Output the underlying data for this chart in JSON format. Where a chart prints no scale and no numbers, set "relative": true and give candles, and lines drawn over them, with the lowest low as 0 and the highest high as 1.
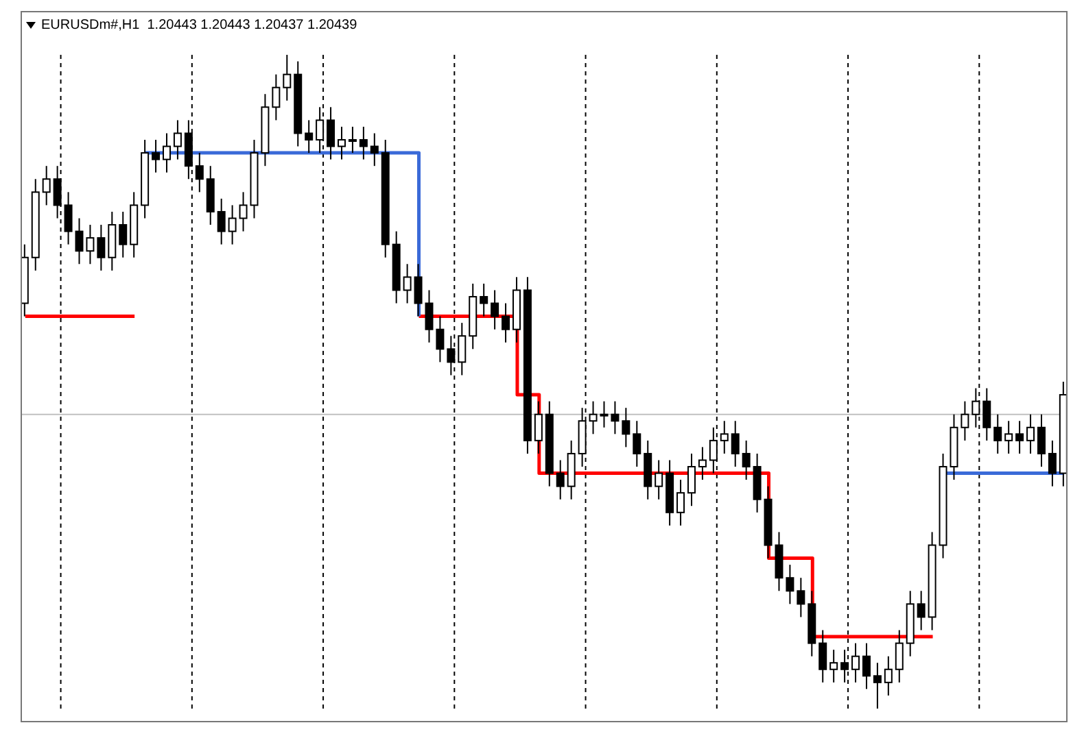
{
  "chart_data": {
    "type": "candlestick",
    "title": "EURUSDm#,H1  1.20443 1.20443 1.20437 1.20439",
    "relative": true,
    "color": "#000000",
    "categories": [
      null,
      null,
      null,
      null,
      null,
      null,
      null,
      null,
      null,
      null,
      null,
      null,
      null,
      null,
      null,
      null,
      null,
      null,
      null,
      null,
      null,
      null,
      null,
      null,
      null,
      null,
      null,
      null,
      null,
      null,
      null,
      null,
      null,
      null,
      null,
      null,
      null,
      null,
      null,
      null,
      null,
      null,
      null,
      null,
      null,
      null,
      null,
      null,
      null,
      null,
      null,
      null,
      null,
      null,
      null,
      null,
      null,
      null,
      null,
      null,
      null,
      null,
      null,
      null,
      null,
      null,
      null,
      null,
      null,
      null,
      null,
      null,
      null,
      null,
      null,
      null,
      null,
      null,
      null,
      null,
      null,
      null,
      null,
      null,
      null,
      null,
      null,
      null,
      null,
      null,
      null,
      null,
      null,
      null,
      null,
      null
    ],
    "ohlc": [
      [
        0.62,
        0.71,
        0.6,
        0.69
      ],
      [
        0.69,
        0.81,
        0.67,
        0.79
      ],
      [
        0.79,
        0.83,
        0.77,
        0.81
      ],
      [
        0.81,
        0.83,
        0.75,
        0.77
      ],
      [
        0.77,
        0.79,
        0.71,
        0.73
      ],
      [
        0.73,
        0.75,
        0.68,
        0.7
      ],
      [
        0.7,
        0.74,
        0.68,
        0.72
      ],
      [
        0.72,
        0.74,
        0.67,
        0.69
      ],
      [
        0.69,
        0.76,
        0.67,
        0.74
      ],
      [
        0.74,
        0.76,
        0.69,
        0.71
      ],
      [
        0.71,
        0.79,
        0.69,
        0.77
      ],
      [
        0.77,
        0.87,
        0.75,
        0.85
      ],
      [
        0.85,
        0.87,
        0.82,
        0.84
      ],
      [
        0.84,
        0.88,
        0.82,
        0.86
      ],
      [
        0.86,
        0.9,
        0.84,
        0.88
      ],
      [
        0.88,
        0.9,
        0.81,
        0.83
      ],
      [
        0.83,
        0.85,
        0.79,
        0.81
      ],
      [
        0.81,
        0.83,
        0.74,
        0.76
      ],
      [
        0.76,
        0.78,
        0.71,
        0.73
      ],
      [
        0.73,
        0.77,
        0.71,
        0.75
      ],
      [
        0.75,
        0.79,
        0.73,
        0.77
      ],
      [
        0.77,
        0.87,
        0.75,
        0.85
      ],
      [
        0.85,
        0.94,
        0.83,
        0.92
      ],
      [
        0.92,
        0.97,
        0.9,
        0.95
      ],
      [
        0.95,
        1.0,
        0.93,
        0.97
      ],
      [
        0.97,
        0.99,
        0.86,
        0.88
      ],
      [
        0.88,
        0.9,
        0.85,
        0.87
      ],
      [
        0.87,
        0.92,
        0.85,
        0.9
      ],
      [
        0.9,
        0.92,
        0.84,
        0.86
      ],
      [
        0.86,
        0.89,
        0.84,
        0.87
      ],
      [
        0.87,
        0.89,
        0.85,
        0.87
      ],
      [
        0.87,
        0.89,
        0.84,
        0.86
      ],
      [
        0.86,
        0.88,
        0.83,
        0.85
      ],
      [
        0.85,
        0.87,
        0.69,
        0.71
      ],
      [
        0.71,
        0.73,
        0.62,
        0.64
      ],
      [
        0.64,
        0.68,
        0.62,
        0.66
      ],
      [
        0.66,
        0.68,
        0.6,
        0.62
      ],
      [
        0.62,
        0.64,
        0.56,
        0.58
      ],
      [
        0.58,
        0.6,
        0.53,
        0.55
      ],
      [
        0.55,
        0.57,
        0.51,
        0.53
      ],
      [
        0.53,
        0.59,
        0.51,
        0.57
      ],
      [
        0.57,
        0.65,
        0.55,
        0.63
      ],
      [
        0.63,
        0.65,
        0.6,
        0.62
      ],
      [
        0.62,
        0.64,
        0.58,
        0.6
      ],
      [
        0.6,
        0.62,
        0.56,
        0.58
      ],
      [
        0.58,
        0.66,
        0.56,
        0.64
      ],
      [
        0.64,
        0.66,
        0.39,
        0.41
      ],
      [
        0.41,
        0.47,
        0.39,
        0.45
      ],
      [
        0.45,
        0.47,
        0.34,
        0.36
      ],
      [
        0.36,
        0.38,
        0.32,
        0.34
      ],
      [
        0.34,
        0.41,
        0.32,
        0.39
      ],
      [
        0.39,
        0.46,
        0.37,
        0.44
      ],
      [
        0.44,
        0.47,
        0.42,
        0.45
      ],
      [
        0.45,
        0.47,
        0.43,
        0.45
      ],
      [
        0.45,
        0.47,
        0.42,
        0.44
      ],
      [
        0.44,
        0.46,
        0.4,
        0.42
      ],
      [
        0.42,
        0.44,
        0.37,
        0.39
      ],
      [
        0.39,
        0.41,
        0.32,
        0.34
      ],
      [
        0.34,
        0.38,
        0.32,
        0.36
      ],
      [
        0.36,
        0.38,
        0.28,
        0.3
      ],
      [
        0.3,
        0.35,
        0.28,
        0.33
      ],
      [
        0.33,
        0.39,
        0.31,
        0.37
      ],
      [
        0.37,
        0.4,
        0.35,
        0.38
      ],
      [
        0.38,
        0.43,
        0.36,
        0.41
      ],
      [
        0.41,
        0.44,
        0.39,
        0.42
      ],
      [
        0.42,
        0.44,
        0.37,
        0.39
      ],
      [
        0.39,
        0.41,
        0.35,
        0.37
      ],
      [
        0.37,
        0.39,
        0.3,
        0.32
      ],
      [
        0.32,
        0.34,
        0.23,
        0.25
      ],
      [
        0.25,
        0.27,
        0.18,
        0.2
      ],
      [
        0.2,
        0.22,
        0.16,
        0.18
      ],
      [
        0.18,
        0.2,
        0.14,
        0.16
      ],
      [
        0.16,
        0.18,
        0.08,
        0.1
      ],
      [
        0.1,
        0.12,
        0.04,
        0.06
      ],
      [
        0.06,
        0.09,
        0.04,
        0.07
      ],
      [
        0.07,
        0.09,
        0.04,
        0.06
      ],
      [
        0.06,
        0.1,
        0.04,
        0.08
      ],
      [
        0.08,
        0.1,
        0.03,
        0.05
      ],
      [
        0.05,
        0.07,
        0.0,
        0.04
      ],
      [
        0.04,
        0.08,
        0.02,
        0.06
      ],
      [
        0.06,
        0.12,
        0.04,
        0.1
      ],
      [
        0.1,
        0.18,
        0.08,
        0.16
      ],
      [
        0.16,
        0.18,
        0.12,
        0.14
      ],
      [
        0.14,
        0.27,
        0.12,
        0.25
      ],
      [
        0.25,
        0.39,
        0.23,
        0.37
      ],
      [
        0.37,
        0.45,
        0.35,
        0.43
      ],
      [
        0.43,
        0.47,
        0.41,
        0.45
      ],
      [
        0.45,
        0.49,
        0.43,
        0.47
      ],
      [
        0.47,
        0.49,
        0.41,
        0.43
      ],
      [
        0.43,
        0.45,
        0.39,
        0.41
      ],
      [
        0.41,
        0.44,
        0.39,
        0.42
      ],
      [
        0.42,
        0.44,
        0.39,
        0.41
      ],
      [
        0.41,
        0.45,
        0.39,
        0.43
      ],
      [
        0.43,
        0.45,
        0.37,
        0.39
      ],
      [
        0.39,
        0.41,
        0.34,
        0.36
      ],
      [
        0.36,
        0.5,
        0.34,
        0.48
      ]
    ],
    "series": [
      {
        "type": "step",
        "color": "#ff0000",
        "values": [
          0.6,
          0.6,
          0.6,
          0.6,
          0.6,
          0.6,
          0.6,
          0.6,
          0.6,
          0.6,
          0.6,
          null,
          null,
          null,
          null,
          null,
          null,
          null,
          null,
          null,
          null,
          null,
          null,
          null,
          null,
          null,
          null,
          null,
          null,
          null,
          null,
          null,
          null,
          null,
          null,
          null,
          0.6,
          0.6,
          0.6,
          0.6,
          0.6,
          0.6,
          0.6,
          0.6,
          0.6,
          0.48,
          0.48,
          0.36,
          0.36,
          0.36,
          0.36,
          0.36,
          0.36,
          0.36,
          0.36,
          0.36,
          0.36,
          0.36,
          0.36,
          0.36,
          0.36,
          0.36,
          0.36,
          0.36,
          0.36,
          0.36,
          0.36,
          0.36,
          0.23,
          0.23,
          0.23,
          0.23,
          0.11,
          0.11,
          0.11,
          0.11,
          0.11,
          0.11,
          0.11,
          0.11,
          0.11,
          0.11,
          0.11,
          0.11,
          null,
          null,
          null,
          null,
          null,
          null,
          null,
          null,
          null,
          null,
          null,
          null
        ]
      },
      {
        "type": "step",
        "color": "#3a6ad8",
        "values": [
          null,
          null,
          null,
          null,
          null,
          null,
          null,
          null,
          null,
          null,
          null,
          0.85,
          0.85,
          0.85,
          0.85,
          0.85,
          0.85,
          0.85,
          0.85,
          0.85,
          0.85,
          0.85,
          0.85,
          0.85,
          0.85,
          0.85,
          0.85,
          0.85,
          0.85,
          0.85,
          0.85,
          0.85,
          0.85,
          0.85,
          0.85,
          0.85,
          0.6,
          null,
          null,
          null,
          null,
          null,
          null,
          null,
          null,
          null,
          null,
          null,
          null,
          null,
          null,
          null,
          null,
          null,
          null,
          null,
          null,
          null,
          null,
          null,
          null,
          null,
          null,
          null,
          null,
          null,
          null,
          null,
          null,
          null,
          null,
          null,
          null,
          null,
          null,
          null,
          null,
          null,
          null,
          null,
          null,
          null,
          null,
          null,
          0.36,
          0.36,
          0.36,
          0.36,
          0.36,
          0.36,
          0.36,
          0.36,
          0.36,
          0.36,
          0.36,
          0.36
        ]
      }
    ],
    "ref_lines": [
      {
        "axis": "y",
        "value": 0.45,
        "color": "#c0c0c0"
      }
    ]
  }
}
